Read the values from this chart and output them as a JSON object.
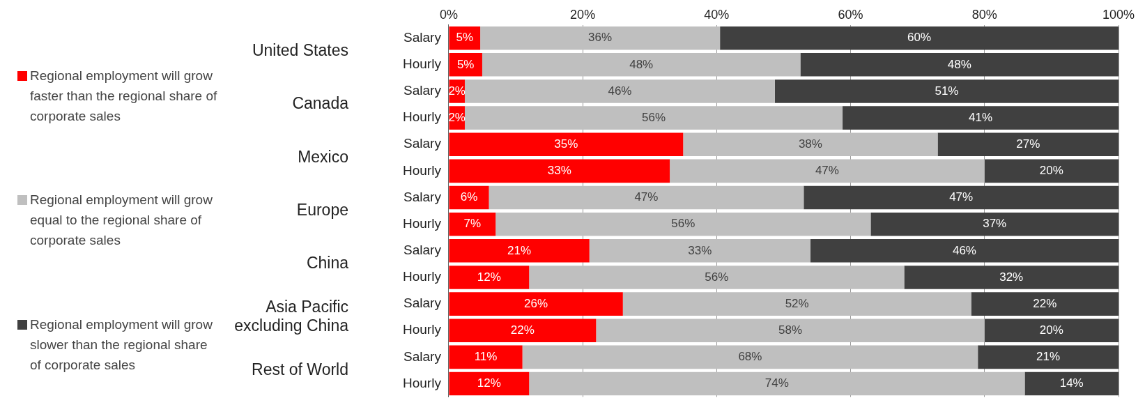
{
  "chart_data": {
    "type": "bar",
    "orientation": "horizontal",
    "stacked": true,
    "categories": [
      "Salary",
      "Hourly",
      "Salary",
      "Hourly",
      "Salary",
      "Hourly",
      "Salary",
      "Hourly",
      "Salary",
      "Hourly",
      "Salary",
      "Hourly",
      "Salary",
      "Hourly"
    ],
    "annotations": [
      "United States",
      "Canada",
      "Mexico",
      "Europe",
      "China",
      "Asia Pacific excluding China",
      "Rest of World"
    ],
    "series": [
      {
        "name": "Regional employment will grow faster than the regional share of corporate sales",
        "color": "#ff0000",
        "values": [
          4.7,
          5,
          2.4,
          2.4,
          35,
          33,
          6,
          7,
          21,
          12,
          26,
          22,
          11,
          12
        ],
        "value_labels": [
          "5%",
          "5%",
          "2%",
          "2%",
          "35%",
          "33%",
          "6%",
          "7%",
          "21%",
          "12%",
          "26%",
          "22%",
          "11%",
          "12%"
        ]
      },
      {
        "name": "Regional employment will grow equal to the regional share of corporate sales",
        "color": "#bfbfbf",
        "values": [
          35.8,
          47.5,
          46.3,
          56.4,
          38,
          47,
          47,
          56,
          33,
          56,
          52,
          58,
          68,
          74
        ],
        "value_labels": [
          "36%",
          "48%",
          "46%",
          "56%",
          "38%",
          "47%",
          "47%",
          "56%",
          "33%",
          "56%",
          "52%",
          "58%",
          "68%",
          "74%"
        ]
      },
      {
        "name": "Regional employment will grow slower than the regional share of corporate sales",
        "color": "#404040",
        "values": [
          59.5,
          47.5,
          51.3,
          41.2,
          27,
          20,
          47,
          37,
          46,
          32,
          22,
          20,
          21,
          14
        ],
        "value_labels": [
          "60%",
          "48%",
          "51%",
          "41%",
          "27%",
          "20%",
          "47%",
          "37%",
          "46%",
          "32%",
          "22%",
          "20%",
          "21%",
          "14%"
        ]
      }
    ],
    "xlim": [
      0,
      100
    ],
    "xticks": [
      {
        "value": 0,
        "label": "0%"
      },
      {
        "value": 20,
        "label": "20%"
      },
      {
        "value": 40,
        "label": "40%"
      },
      {
        "value": 60,
        "label": "60%"
      },
      {
        "value": 80,
        "label": "80%"
      },
      {
        "value": 100,
        "label": "100%"
      }
    ],
    "grid": "x",
    "legend": "left"
  }
}
